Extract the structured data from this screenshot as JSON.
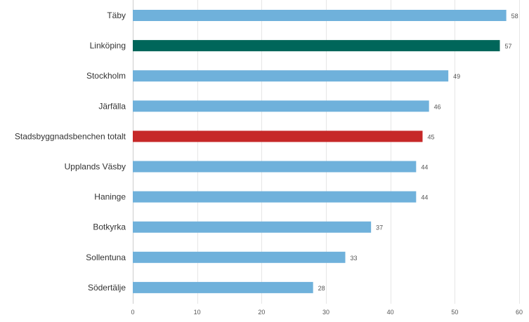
{
  "chart_data": {
    "type": "bar",
    "orientation": "horizontal",
    "title": "",
    "xlabel": "",
    "ylabel": "",
    "categories": [
      "Täby",
      "Linköping",
      "Stockholm",
      "Järfälla",
      "Stadsbyggnadsbenchen totalt",
      "Upplands Väsby",
      "Haninge",
      "Botkyrka",
      "Sollentuna",
      "Södertälje"
    ],
    "values": [
      58,
      57,
      49,
      46,
      45,
      44,
      44,
      37,
      33,
      28
    ],
    "value_labels": [
      "58",
      "57",
      "49",
      "46",
      "45",
      "44",
      "44",
      "37",
      "33",
      "28"
    ],
    "bar_colors": [
      "#6fb1db",
      "#00665a",
      "#6fb1db",
      "#6fb1db",
      "#c62828",
      "#6fb1db",
      "#6fb1db",
      "#6fb1db",
      "#6fb1db",
      "#6fb1db"
    ],
    "xlim": [
      0,
      60
    ],
    "x_ticks": [
      0,
      10,
      20,
      30,
      40,
      50,
      60
    ],
    "x_tick_labels": [
      "0",
      "10",
      "20",
      "30",
      "40",
      "50",
      "60"
    ],
    "grid": true,
    "legend": "none"
  }
}
